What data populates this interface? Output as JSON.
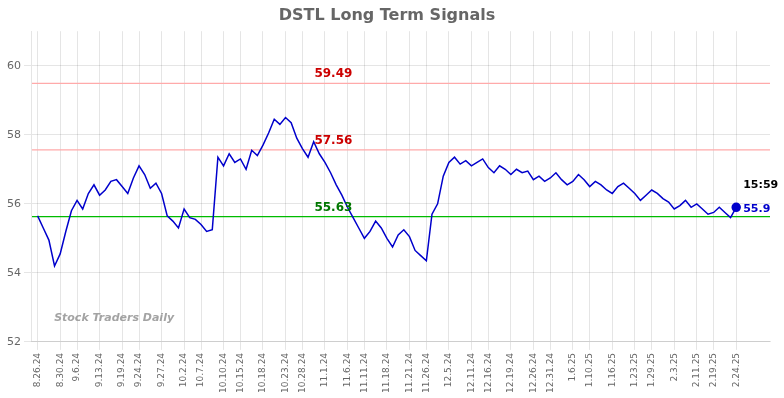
{
  "chart_data": {
    "type": "line",
    "title": "DSTL Long Term Signals",
    "categories": [
      "8.26.24",
      null,
      null,
      null,
      "8.30.24",
      null,
      null,
      "9.6.24",
      null,
      null,
      null,
      "9.13.24",
      null,
      null,
      null,
      "9.19.24",
      null,
      null,
      "9.24.24",
      null,
      null,
      null,
      "9.27.24",
      null,
      null,
      null,
      "10.2.24",
      null,
      null,
      "10.7.24",
      null,
      null,
      null,
      "10.10.24",
      null,
      null,
      "10.15.24",
      null,
      null,
      null,
      "10.18.24",
      null,
      null,
      null,
      "10.23.24",
      null,
      null,
      "10.28.24",
      null,
      null,
      null,
      "11.1.24",
      null,
      null,
      null,
      "11.6.24",
      null,
      null,
      "11.11.24",
      null,
      null,
      null,
      "11.18.24",
      null,
      null,
      null,
      "11.21.24",
      null,
      null,
      "11.26.24",
      null,
      null,
      null,
      "12.5.24",
      null,
      null,
      null,
      "12.11.24",
      null,
      null,
      "12.16.24",
      null,
      null,
      null,
      "12.19.24",
      null,
      null,
      null,
      "12.26.24",
      null,
      null,
      "12.31.24",
      null,
      null,
      null,
      "1.6.25",
      null,
      null,
      "1.10.25",
      null,
      null,
      null,
      "1.16.25",
      null,
      null,
      null,
      "1.23.25",
      null,
      null,
      "1.29.25",
      null,
      null,
      null,
      "2.3.25",
      null,
      null,
      null,
      "2.11.25",
      null,
      null,
      "2.19.25",
      null,
      null,
      null,
      "2.24.25"
    ],
    "values": [
      55.65,
      55.3,
      54.95,
      54.2,
      54.55,
      55.2,
      55.8,
      56.1,
      55.85,
      56.3,
      56.55,
      56.25,
      56.4,
      56.65,
      56.7,
      56.5,
      56.3,
      56.75,
      57.1,
      56.85,
      56.45,
      56.6,
      56.3,
      55.65,
      55.5,
      55.3,
      55.85,
      55.6,
      55.55,
      55.4,
      55.2,
      55.25,
      57.35,
      57.1,
      57.45,
      57.2,
      57.3,
      57.0,
      57.55,
      57.4,
      57.7,
      58.05,
      58.45,
      58.3,
      58.5,
      58.35,
      57.9,
      57.6,
      57.35,
      57.8,
      57.45,
      57.2,
      56.9,
      56.55,
      56.25,
      55.9,
      55.6,
      55.3,
      55.0,
      55.2,
      55.5,
      55.3,
      55.0,
      54.75,
      55.1,
      55.25,
      55.05,
      54.65,
      54.5,
      54.35,
      55.7,
      56.0,
      56.8,
      57.2,
      57.35,
      57.15,
      57.25,
      57.1,
      57.2,
      57.3,
      57.05,
      56.9,
      57.1,
      57.0,
      56.85,
      57.0,
      56.9,
      56.95,
      56.7,
      56.8,
      56.65,
      56.75,
      56.9,
      56.7,
      56.55,
      56.65,
      56.85,
      56.7,
      56.5,
      56.65,
      56.55,
      56.4,
      56.3,
      56.5,
      56.6,
      56.45,
      56.3,
      56.1,
      56.25,
      56.4,
      56.3,
      56.15,
      56.05,
      55.85,
      55.95,
      56.1,
      55.9,
      56.0,
      55.85,
      55.7,
      55.75,
      55.9,
      55.75,
      55.6,
      55.9
    ],
    "color": "#0000cc",
    "ylim": [
      52,
      61
    ],
    "yticks": [
      52,
      54,
      56,
      58,
      60
    ],
    "grid": true,
    "reference_lines": [
      {
        "value": 59.49,
        "color": "#ffaaaa",
        "label": "59.49",
        "label_color": "#cc0000"
      },
      {
        "value": 57.56,
        "color": "#ffaaaa",
        "label": "57.56",
        "label_color": "#cc0000"
      },
      {
        "value": 55.63,
        "color": "#00bb00",
        "label": "55.63",
        "label_color": "#007700"
      }
    ],
    "annotations": [
      {
        "text": "15:59",
        "color": "#000000"
      },
      {
        "text": "55.9",
        "color": "#0000cc"
      }
    ],
    "watermark": "Stock Traders Daily"
  }
}
